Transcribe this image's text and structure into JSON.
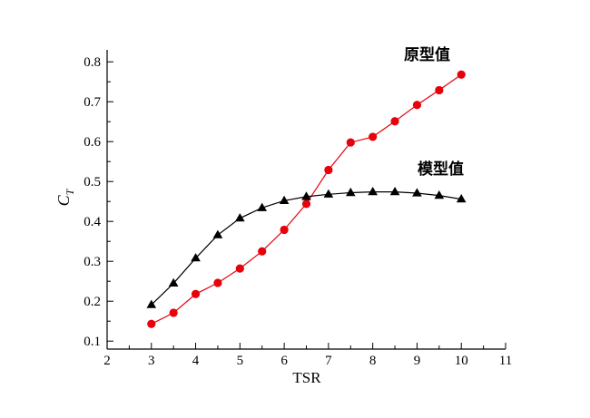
{
  "chart_data": {
    "type": "line",
    "title": "",
    "xlabel": "TSR",
    "ylabel": "C",
    "ylabel_sub": "T",
    "xlim": [
      2,
      11
    ],
    "ylim": [
      0.08,
      0.83
    ],
    "xticks": [
      "2",
      "3",
      "4",
      "5",
      "6",
      "7",
      "8",
      "9",
      "10",
      "11"
    ],
    "yticks": [
      "0.1",
      "0.2",
      "0.3",
      "0.4",
      "0.5",
      "0.6",
      "0.7",
      "0.8"
    ],
    "grid": false,
    "legend": "none",
    "series": [
      {
        "name": "原型值",
        "color": "#e8000b",
        "marker": "circle",
        "x": [
          3,
          3.5,
          4,
          4.5,
          5,
          5.5,
          6,
          6.5,
          7,
          7.5,
          8,
          8.5,
          9,
          9.5,
          10
        ],
        "y": [
          0.143,
          0.171,
          0.218,
          0.246,
          0.282,
          0.325,
          0.379,
          0.444,
          0.529,
          0.598,
          0.612,
          0.651,
          0.692,
          0.729,
          0.768
        ]
      },
      {
        "name": "模型值",
        "color": "#000000",
        "marker": "triangle",
        "x": [
          3,
          3.5,
          4,
          4.5,
          5,
          5.5,
          6,
          6.5,
          7,
          7.5,
          8,
          8.5,
          9,
          9.5,
          10
        ],
        "y": [
          0.191,
          0.245,
          0.308,
          0.366,
          0.408,
          0.434,
          0.452,
          0.462,
          0.468,
          0.472,
          0.474,
          0.474,
          0.471,
          0.465,
          0.456
        ]
      }
    ]
  }
}
